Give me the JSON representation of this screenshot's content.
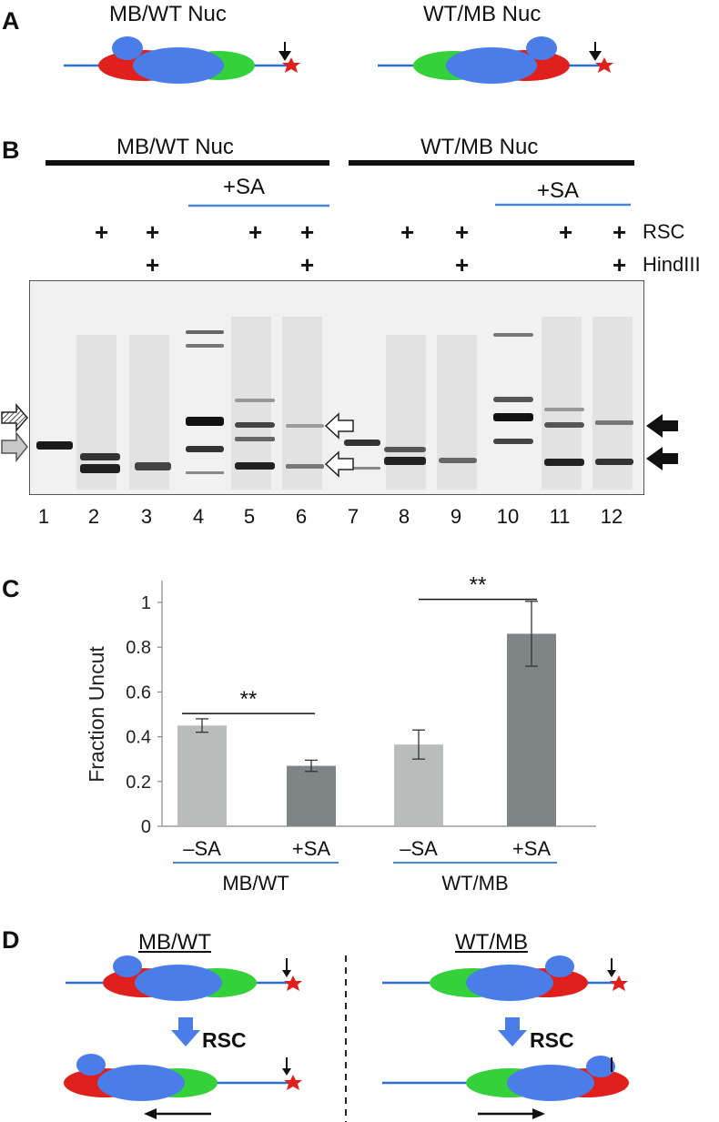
{
  "panel_a": {
    "letter": "A",
    "left_title": "MB/WT Nuc",
    "right_title": "WT/MB Nuc"
  },
  "panel_b": {
    "letter": "B",
    "group_left": "MB/WT Nuc",
    "group_right": "WT/MB Nuc",
    "sa_label": "+SA",
    "plus": "+",
    "row_rsc": "RSC",
    "row_hindiii": "HindIII",
    "lanes": [
      "1",
      "2",
      "3",
      "4",
      "5",
      "6",
      "7",
      "8",
      "9",
      "10",
      "11",
      "12"
    ]
  },
  "panel_c": {
    "letter": "C",
    "significance": "**"
  },
  "chart_data": {
    "type": "bar",
    "categories": [
      "–SA",
      "+SA",
      "–SA",
      "+SA"
    ],
    "groups": [
      "MB/WT",
      "WT/MB"
    ],
    "values": [
      0.45,
      0.27,
      0.365,
      0.86
    ],
    "errors": [
      0.03,
      0.025,
      0.065,
      0.145
    ],
    "bar_colors": [
      "#b9bcbb",
      "#7f8584",
      "#b9bcbb",
      "#7f8584"
    ],
    "ylabel": "Fraction Uncut",
    "ylim": [
      0,
      1
    ],
    "yticks": [
      "0",
      "0.2",
      "0.4",
      "0.6",
      "0.8",
      "1"
    ],
    "significance": [
      "**",
      "**"
    ]
  },
  "panel_d": {
    "letter": "D",
    "left_title": "MB/WT",
    "right_title": "WT/MB",
    "rsc_label": "RSC"
  },
  "colors": {
    "dna": "#2e6fd1",
    "nucleosome_core": "#4a7de8",
    "red_lobe": "#e0201c",
    "green_lobe": "#35d13a",
    "group_bar": "#4a86d8",
    "gel_bg": "#f1f1f1",
    "bands": "#222222"
  }
}
